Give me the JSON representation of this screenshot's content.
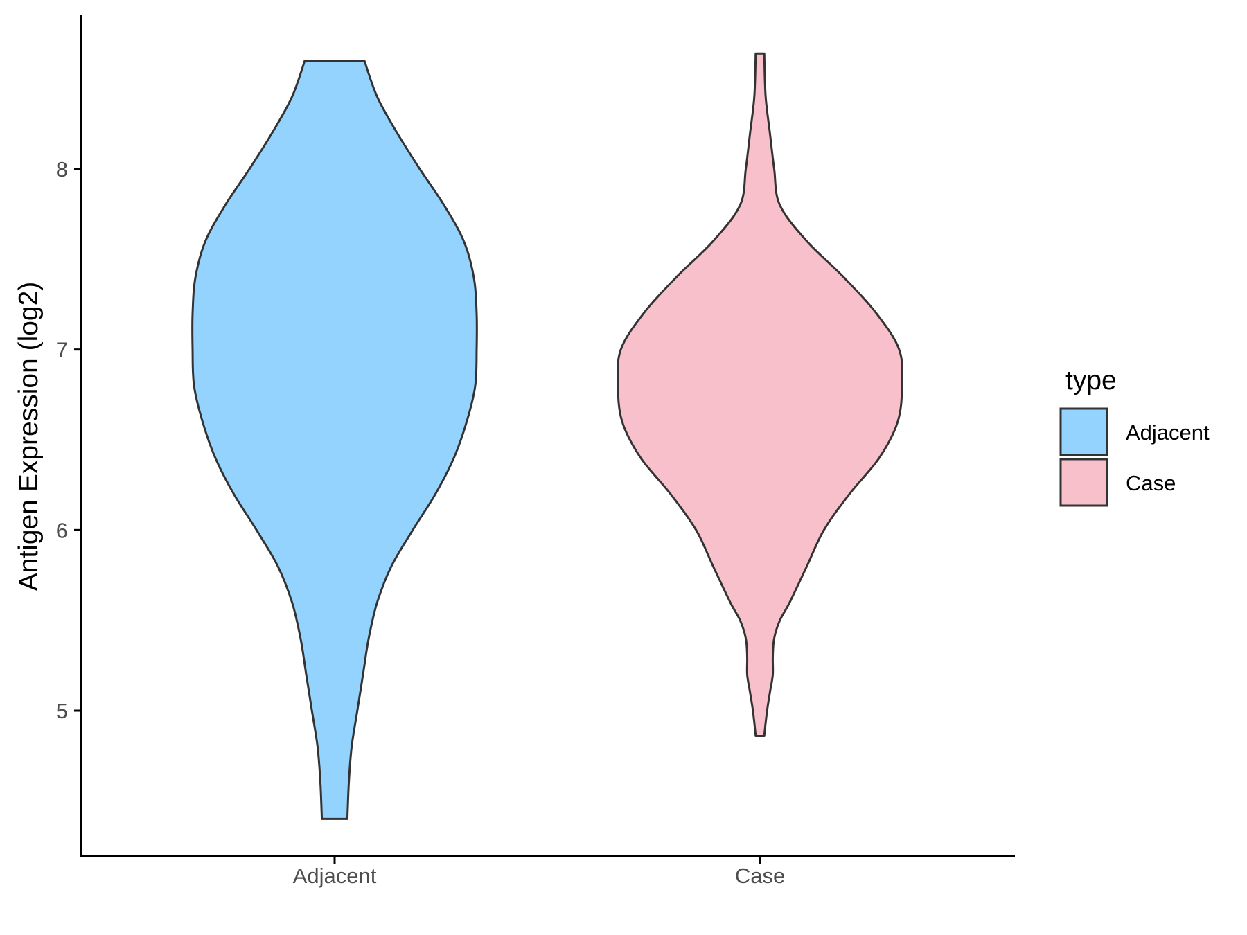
{
  "chart_data": {
    "type": "violin",
    "title": "",
    "xlabel": "",
    "ylabel": "Antigen Expression (log2)",
    "categories": [
      "Adjacent",
      "Case"
    ],
    "yticks": [
      5,
      6,
      7,
      8
    ],
    "ylim": [
      4.2,
      8.85
    ],
    "grid": false,
    "legend": {
      "title": "type",
      "position": "right",
      "entries": [
        {
          "label": "Adjacent",
          "color": "#93d3fe"
        },
        {
          "label": "Case",
          "color": "#f8c0cb"
        }
      ]
    },
    "series": [
      {
        "category": "Adjacent",
        "color": "#93d3fe",
        "min": 4.4,
        "max": 8.6,
        "density": [
          [
            4.4,
            0.09
          ],
          [
            4.6,
            0.1
          ],
          [
            4.8,
            0.12
          ],
          [
            5.0,
            0.16
          ],
          [
            5.2,
            0.2
          ],
          [
            5.4,
            0.24
          ],
          [
            5.6,
            0.3
          ],
          [
            5.8,
            0.4
          ],
          [
            6.0,
            0.55
          ],
          [
            6.2,
            0.71
          ],
          [
            6.4,
            0.84
          ],
          [
            6.6,
            0.93
          ],
          [
            6.8,
            0.99
          ],
          [
            7.0,
            1.0
          ],
          [
            7.2,
            1.0
          ],
          [
            7.4,
            0.98
          ],
          [
            7.6,
            0.91
          ],
          [
            7.8,
            0.77
          ],
          [
            8.0,
            0.6
          ],
          [
            8.2,
            0.44
          ],
          [
            8.4,
            0.3
          ],
          [
            8.6,
            0.21
          ]
        ]
      },
      {
        "category": "Case",
        "color": "#f8c0cb",
        "min": 4.86,
        "max": 8.64,
        "density": [
          [
            4.86,
            0.03
          ],
          [
            5.0,
            0.05
          ],
          [
            5.1,
            0.07
          ],
          [
            5.2,
            0.09
          ],
          [
            5.3,
            0.09
          ],
          [
            5.4,
            0.1
          ],
          [
            5.5,
            0.14
          ],
          [
            5.6,
            0.21
          ],
          [
            5.8,
            0.33
          ],
          [
            6.0,
            0.45
          ],
          [
            6.2,
            0.63
          ],
          [
            6.4,
            0.84
          ],
          [
            6.6,
            0.97
          ],
          [
            6.8,
            1.0
          ],
          [
            7.0,
            0.98
          ],
          [
            7.2,
            0.82
          ],
          [
            7.4,
            0.59
          ],
          [
            7.6,
            0.33
          ],
          [
            7.8,
            0.14
          ],
          [
            8.0,
            0.1
          ],
          [
            8.2,
            0.07
          ],
          [
            8.4,
            0.04
          ],
          [
            8.64,
            0.03
          ]
        ]
      }
    ]
  }
}
